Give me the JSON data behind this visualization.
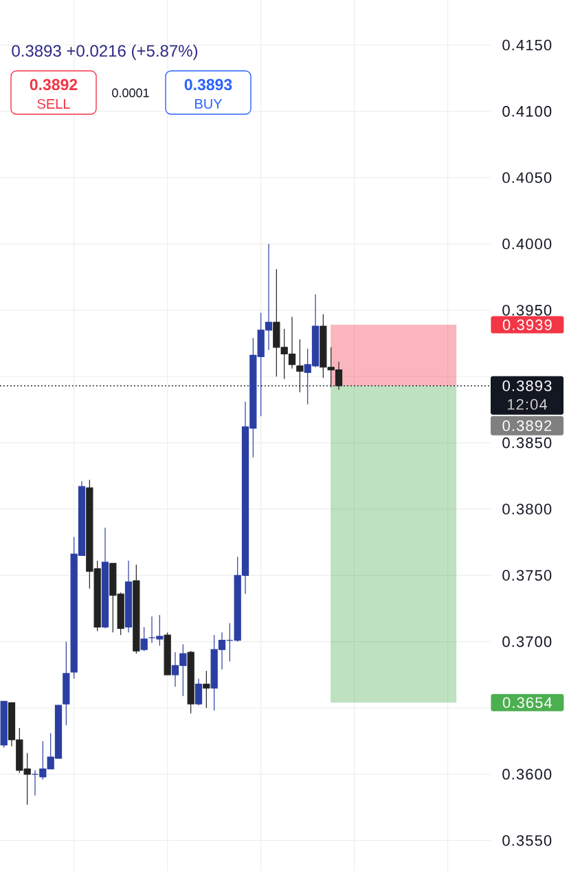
{
  "chart_data": {
    "type": "candlestick",
    "subtitle": "0.3893 +0.0216 (+5.87%)",
    "categories": [
      null,
      null,
      null,
      null,
      null,
      null,
      null,
      null,
      null,
      null,
      null,
      null,
      null,
      null,
      null,
      null,
      null,
      null,
      null,
      null,
      null,
      null,
      null,
      null,
      null,
      null,
      null,
      null,
      null,
      null,
      null,
      null,
      null,
      null,
      null,
      null,
      null,
      null,
      null,
      null,
      null,
      null,
      null,
      null,
      null,
      null,
      null,
      null,
      null,
      null,
      null,
      null,
      null,
      null,
      null,
      null,
      null,
      null,
      null,
      null,
      null,
      null,
      null
    ],
    "ohlc": [
      [
        0.3622,
        0.3655,
        0.362,
        0.3655
      ],
      [
        0.3654,
        0.3654,
        0.3621,
        0.3626
      ],
      [
        0.3626,
        0.3635,
        0.3601,
        0.3603
      ],
      [
        0.3604,
        0.3616,
        0.3577,
        0.36
      ],
      [
        0.36,
        0.3603,
        0.3584,
        0.36
      ],
      [
        0.3598,
        0.3625,
        0.3596,
        0.3604
      ],
      [
        0.3604,
        0.3631,
        0.3604,
        0.3613
      ],
      [
        0.3612,
        0.3652,
        0.3612,
        0.3652
      ],
      [
        0.3653,
        0.37,
        0.3637,
        0.3676
      ],
      [
        0.3677,
        0.3779,
        0.3672,
        0.3766
      ],
      [
        0.3765,
        0.3821,
        0.3765,
        0.3817
      ],
      [
        0.3816,
        0.3822,
        0.374,
        0.3753
      ],
      [
        0.3755,
        0.3761,
        0.3708,
        0.3711
      ],
      [
        0.3711,
        0.3786,
        0.371,
        0.376
      ],
      [
        0.3759,
        0.3759,
        0.3707,
        0.3735
      ],
      [
        0.3736,
        0.3737,
        0.3705,
        0.371
      ],
      [
        0.3711,
        0.3761,
        0.3707,
        0.3745
      ],
      [
        0.3746,
        0.3758,
        0.3691,
        0.3693
      ],
      [
        0.3694,
        0.3711,
        0.3693,
        0.3702
      ],
      [
        0.3703,
        0.3719,
        0.3699,
        0.3703
      ],
      [
        0.3702,
        0.372,
        0.3697,
        0.3704
      ],
      [
        0.3705,
        0.3707,
        0.3675,
        0.3675
      ],
      [
        0.3675,
        0.3692,
        0.3666,
        0.3682
      ],
      [
        0.3682,
        0.3698,
        0.3659,
        0.3691
      ],
      [
        0.3692,
        0.3693,
        0.3646,
        0.3653
      ],
      [
        0.3653,
        0.3672,
        0.3652,
        0.3668
      ],
      [
        0.3668,
        0.3678,
        0.365,
        0.3665
      ],
      [
        0.3665,
        0.3705,
        0.3648,
        0.3694
      ],
      [
        0.3694,
        0.3707,
        0.3679,
        0.3701
      ],
      [
        0.3701,
        0.3714,
        0.3685,
        0.3701
      ],
      [
        0.3701,
        0.3764,
        0.37,
        0.375
      ],
      [
        0.375,
        0.3881,
        0.3736,
        0.3862
      ],
      [
        0.3861,
        0.3929,
        0.3839,
        0.3916
      ],
      [
        0.3915,
        0.3948,
        0.387,
        0.3935
      ],
      [
        0.3935,
        0.4,
        0.392,
        0.3941
      ],
      [
        0.3941,
        0.3981,
        0.39,
        0.3922
      ],
      [
        0.3922,
        0.3936,
        0.3898,
        0.3917
      ],
      [
        0.3917,
        0.3945,
        0.3906,
        0.3909
      ],
      [
        0.3908,
        0.3928,
        0.3888,
        0.3904
      ],
      [
        0.3903,
        0.3921,
        0.3879,
        0.3909
      ],
      [
        0.3908,
        0.3962,
        0.3907,
        0.3938
      ],
      [
        0.3938,
        0.3947,
        0.3899,
        0.3907
      ],
      [
        0.3907,
        0.3922,
        0.3892,
        0.3905
      ],
      [
        0.3905,
        0.3911,
        0.389,
        0.3893
      ],
      null,
      null,
      null,
      null,
      null,
      null,
      null,
      null,
      null,
      null,
      null,
      null,
      null,
      null,
      null,
      null,
      null,
      null,
      null
    ],
    "colors": [
      "#2b3fa3",
      "#222222",
      "#222222",
      "#222222",
      "#2b3fa3",
      "#2b3fa3",
      "#2b3fa3",
      "#2b3fa3",
      "#2b3fa3",
      "#2b3fa3",
      "#2b3fa3",
      "#222222",
      "#222222",
      "#2b3fa3",
      "#222222",
      "#222222",
      "#2b3fa3",
      "#222222",
      "#2b3fa3",
      "#2b3fa3",
      "#2b3fa3",
      "#222222",
      "#2b3fa3",
      "#2b3fa3",
      "#222222",
      "#2b3fa3",
      "#222222",
      "#2b3fa3",
      "#2b3fa3",
      "#2b3fa3",
      "#2b3fa3",
      "#2b3fa3",
      "#2b3fa3",
      "#2b3fa3",
      "#2b3fa3",
      "#222222",
      "#222222",
      "#222222",
      "#222222",
      "#2b3fa3",
      "#2b3fa3",
      "#222222",
      "#222222",
      "#222222",
      null,
      null,
      null,
      null,
      null,
      null,
      null,
      null,
      null,
      null,
      null,
      null,
      null,
      null,
      null,
      null,
      null,
      null,
      null
    ],
    "ylim": [
      0.3527,
      0.4184
    ],
    "yticks": [
      {
        "value": 0.355,
        "label": "0.3550"
      },
      {
        "value": 0.36,
        "label": "0.3600"
      },
      {
        "value": 0.365,
        "label": null
      },
      {
        "value": 0.37,
        "label": "0.3700"
      },
      {
        "value": 0.375,
        "label": "0.3750"
      },
      {
        "value": 0.38,
        "label": "0.3800"
      },
      {
        "value": 0.385,
        "label": "0.3850"
      },
      {
        "value": 0.39,
        "label": null
      },
      {
        "value": 0.395,
        "label": "0.3950"
      },
      {
        "value": 0.4,
        "label": "0.4000"
      },
      {
        "value": 0.405,
        "label": "0.4050"
      },
      {
        "value": 0.41,
        "label": "0.4100"
      },
      {
        "value": 0.415,
        "label": "0.4150"
      }
    ],
    "tick_labels": "y",
    "grid": true,
    "ref_lines": [
      {
        "axis": "y",
        "value": 0.3893,
        "label": "0.3893",
        "color": "#131722",
        "line_style": "dotted"
      }
    ],
    "bands": [
      {
        "axis": "y",
        "from": 0.3893,
        "to": 0.3939,
        "color": "#f23645"
      },
      {
        "axis": "y",
        "from": 0.3893,
        "to": 0.3654,
        "color": "#4caf50"
      }
    ],
    "annotations": [
      "0.3892",
      "SELL",
      "0.0001",
      "0.3893",
      "BUY",
      "12:04",
      "0.3892",
      "0.3939",
      "0.3654"
    ]
  }
}
